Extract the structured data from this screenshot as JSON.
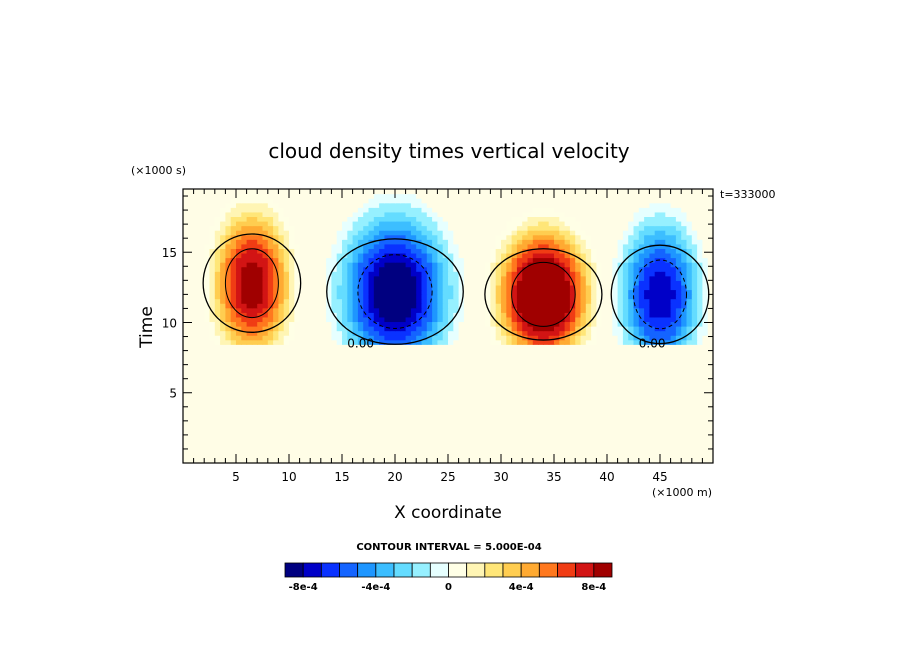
{
  "chart_data": {
    "type": "heatmap",
    "title": "cloud density times vertical velocity",
    "xlabel": "X coordinate",
    "ylabel": "Time",
    "x_unit": "(×1000 m)",
    "y_unit": "(×1000 s)",
    "annotation_top_right": "t=333000",
    "xlim": [
      0,
      50
    ],
    "ylim": [
      0,
      19.5
    ],
    "x_ticks": [
      5,
      10,
      15,
      20,
      25,
      30,
      35,
      40,
      45
    ],
    "y_ticks": [
      5,
      10,
      15
    ],
    "contour_interval_text": "CONTOUR INTERVAL = 5.000E-04",
    "zero_contour_labels": [
      {
        "text": "0.00",
        "x": 15.5,
        "y": 8.5
      },
      {
        "text": "0.00",
        "x": 43.0,
        "y": 8.5
      }
    ],
    "cells": [
      {
        "x_center": 6.5,
        "y_center": 12.8,
        "x_halfwidth": 5.0,
        "y_halfwidth": 7.0,
        "peak": 0.0009
      },
      {
        "x_center": 20.0,
        "y_center": 12.2,
        "x_halfwidth": 7.0,
        "y_halfwidth": 7.5,
        "peak": -0.00095
      },
      {
        "x_center": 34.0,
        "y_center": 12.0,
        "x_halfwidth": 6.0,
        "y_halfwidth": 6.5,
        "peak": 0.00115
      },
      {
        "x_center": 45.0,
        "y_center": 12.0,
        "x_halfwidth": 5.0,
        "y_halfwidth": 7.0,
        "peak": -0.0008
      }
    ],
    "colorbar": {
      "colors": [
        "#000080",
        "#0000c8",
        "#0a32ff",
        "#1464ff",
        "#1e96ff",
        "#3cbeff",
        "#64dcff",
        "#96f0ff",
        "#e6ffff",
        "#ffffe6",
        "#fff5b4",
        "#ffe678",
        "#ffcd50",
        "#ffaa32",
        "#ff781e",
        "#f03c14",
        "#d21414",
        "#a00000"
      ],
      "tick_labels": [
        "-8e-4",
        "-4e-4",
        "0",
        "4e-4",
        "8e-4"
      ],
      "tick_values": [
        -0.0008,
        -0.0004,
        0,
        0.0004,
        0.0008
      ],
      "range": [
        -0.0009,
        0.0009
      ]
    }
  }
}
